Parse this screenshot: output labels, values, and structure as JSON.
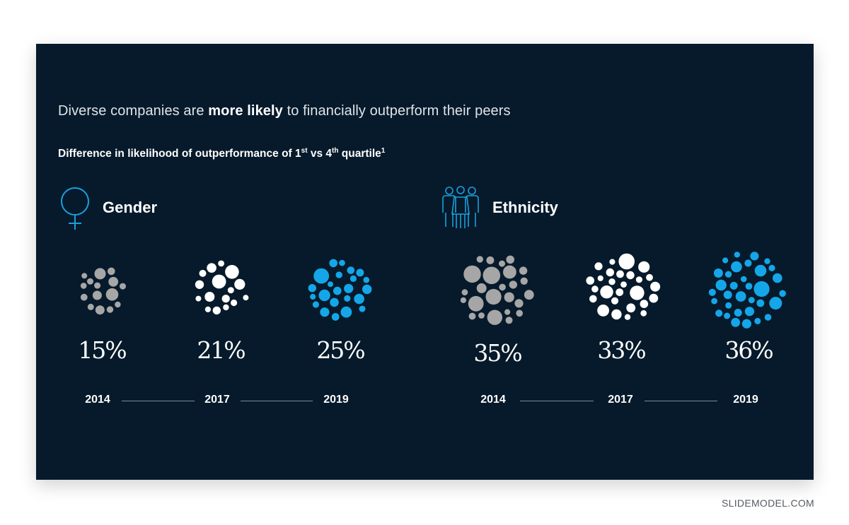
{
  "title": {
    "prefix": "Diverse companies are ",
    "emphasis": "more likely",
    "suffix": " to financially outperform their peers"
  },
  "subtitle": {
    "part1": "Difference in likelihood of outperformance of 1",
    "sup1": "st",
    "part2": " vs 4",
    "sup2": "th",
    "part3": " quartile",
    "sup3": "1"
  },
  "colors": {
    "background": "#061a2b",
    "gray": "#a6a6a6",
    "white": "#ffffff",
    "blue": "#14a6e8",
    "icon": "#1aa0dc"
  },
  "chart_data": [
    {
      "type": "bubble-cluster",
      "title": "Gender",
      "icon": "female-symbol-icon",
      "categories": [
        "2014",
        "2017",
        "2019"
      ],
      "values": [
        15,
        21,
        25
      ],
      "labels": [
        "15%",
        "21%",
        "25%"
      ],
      "cluster_colors": [
        "gray",
        "white",
        "blue"
      ]
    },
    {
      "type": "bubble-cluster",
      "title": "Ethnicity",
      "icon": "group-of-people-icon",
      "categories": [
        "2014",
        "2017",
        "2019"
      ],
      "values": [
        35,
        33,
        36
      ],
      "labels": [
        "35%",
        "33%",
        "36%"
      ],
      "cluster_colors": [
        "gray",
        "white",
        "blue"
      ]
    }
  ],
  "watermark": "SLIDEMODEL.COM"
}
